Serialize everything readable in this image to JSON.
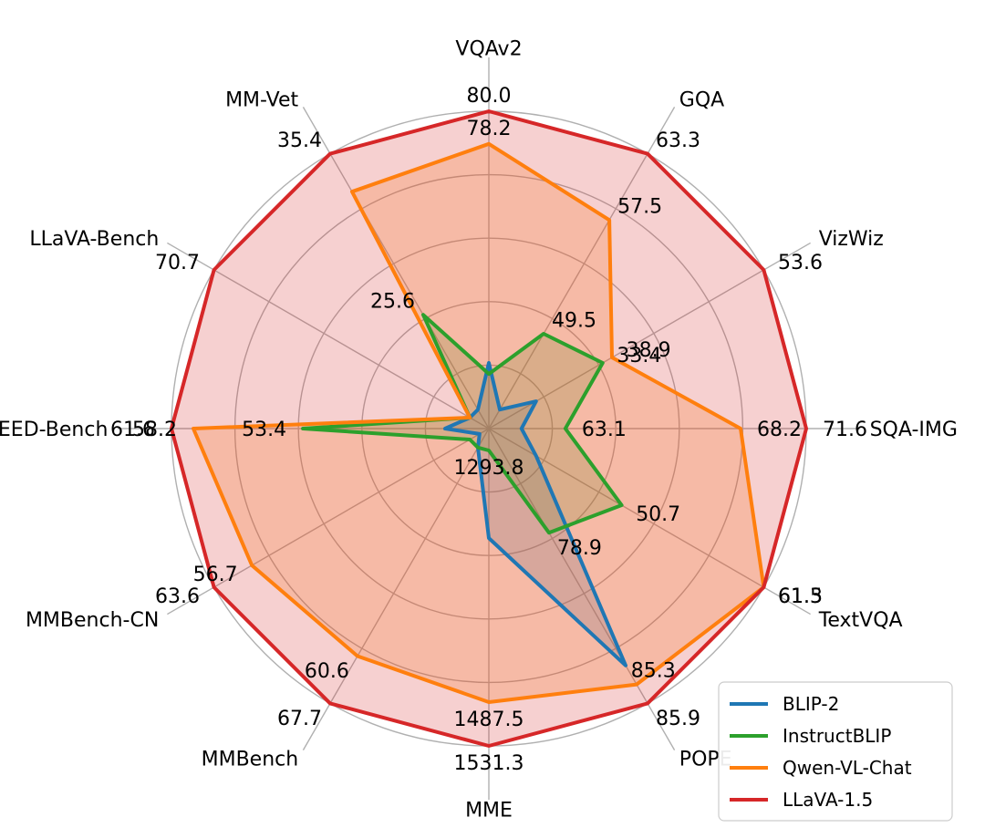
{
  "chart_data": {
    "type": "radar",
    "axes": [
      "VQAv2",
      "GQA",
      "VizWiz",
      "SQA-IMG",
      "TextVQA",
      "POPE",
      "MME",
      "MMBench",
      "MMBench-CN",
      "SEED-Bench",
      "LLaVA-Bench",
      "MM-Vet"
    ],
    "axis_max_labels": [
      "80.0",
      "63.3",
      "53.6",
      "71.6",
      "61.3",
      "85.9",
      "1531.3",
      "67.7",
      "63.6",
      "61.6",
      "70.7",
      "35.4"
    ],
    "rings": 5,
    "series": [
      {
        "name": "BLIP-2",
        "color": "#1f77b4",
        "normalized": [
          0.207,
          0.069,
          0.172,
          0.103,
          0.172,
          0.862,
          0.345,
          0.069,
          0.034,
          0.138,
          0.069,
          0.069
        ],
        "labels": []
      },
      {
        "name": "InstructBLIP",
        "color": "#2ca02c",
        "normalized": [
          0.172,
          0.345,
          0.414,
          0.241,
          0.483,
          0.379,
          0.069,
          0.069,
          0.069,
          0.586,
          0.069,
          0.414
        ],
        "labels": [
          "",
          "49.5",
          "33.4",
          "63.1",
          "50.7",
          "78.9",
          "1293.8",
          "",
          "",
          "53.4",
          "",
          "25.6"
        ]
      },
      {
        "name": "Qwen-VL-Chat",
        "color": "#ff7f0e",
        "normalized": [
          0.897,
          0.759,
          0.448,
          0.793,
          1.0,
          0.931,
          0.862,
          0.828,
          0.862,
          0.931,
          0.069,
          0.862
        ],
        "labels": [
          "78.2",
          "57.5",
          "38.9",
          "68.2",
          "61.5",
          "",
          "1487.5",
          "60.6",
          "56.7",
          "58.2",
          "",
          ""
        ]
      },
      {
        "name": "LLaVA-1.5",
        "color": "#d62728",
        "normalized": [
          1.0,
          1.0,
          1.0,
          1.0,
          1.0,
          1.0,
          1.0,
          1.0,
          1.0,
          1.0,
          1.0,
          1.0
        ],
        "labels": [
          "80.0",
          "63.3",
          "53.6",
          "71.6",
          "61.3",
          "85.9",
          "1531.3",
          "67.7",
          "63.6",
          "61.6",
          "70.7",
          "35.4"
        ]
      }
    ],
    "extra_labels": [
      "85.3"
    ],
    "legend_position": "bottom-right"
  }
}
